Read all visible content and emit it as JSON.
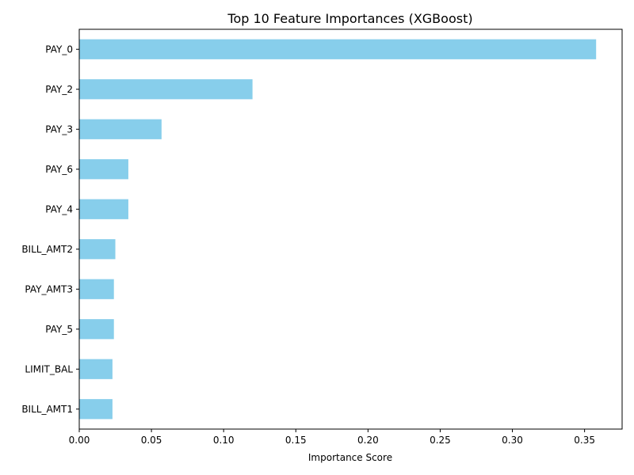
{
  "chart_data": {
    "type": "bar",
    "orientation": "horizontal",
    "title": "Top 10 Feature Importances (XGBoost)",
    "xlabel": "Importance Score",
    "ylabel": "",
    "categories": [
      "PAY_0",
      "PAY_2",
      "PAY_3",
      "PAY_6",
      "PAY_4",
      "BILL_AMT2",
      "PAY_AMT3",
      "PAY_5",
      "LIMIT_BAL",
      "BILL_AMT1"
    ],
    "values": [
      0.358,
      0.12,
      0.057,
      0.034,
      0.034,
      0.025,
      0.024,
      0.024,
      0.023,
      0.023
    ],
    "xlim": [
      0,
      0.376
    ],
    "x_ticks": [
      0.0,
      0.05,
      0.1,
      0.15,
      0.2,
      0.25,
      0.3,
      0.35
    ],
    "x_tick_labels": [
      "0.00",
      "0.05",
      "0.10",
      "0.15",
      "0.20",
      "0.25",
      "0.30",
      "0.35"
    ],
    "grid": false,
    "legend": "none",
    "bar_color": "#87ceeb"
  }
}
